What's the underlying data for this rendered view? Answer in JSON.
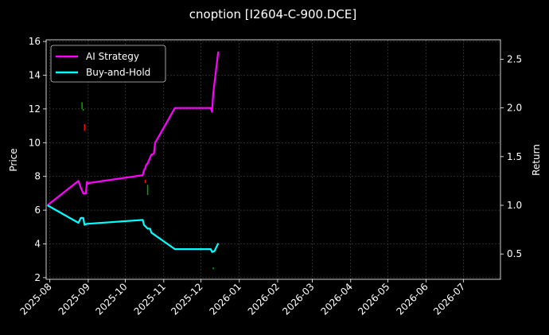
{
  "chart_data": {
    "type": "line",
    "title": "cnoption [I2604-C-900.DCE]",
    "ylabel_left": "Price",
    "ylabel_right": "Return",
    "x_range": [
      "2025-07-29",
      "2026-07-31"
    ],
    "y_left_range": [
      1.9,
      16.1
    ],
    "y_right_range": [
      0.24,
      2.7
    ],
    "x_tick_labels": [
      "2025-08",
      "2025-09",
      "2025-10",
      "2025-11",
      "2025-12",
      "2026-01",
      "2026-02",
      "2026-03",
      "2026-04",
      "2026-05",
      "2026-06",
      "2026-07"
    ],
    "x_tick_dates": [
      "2025-08-01",
      "2025-09-01",
      "2025-10-01",
      "2025-11-01",
      "2025-12-01",
      "2026-01-01",
      "2026-02-01",
      "2026-03-01",
      "2026-04-01",
      "2026-05-01",
      "2026-06-01",
      "2026-07-01"
    ],
    "y_left_ticks": [
      2,
      4,
      6,
      8,
      10,
      12,
      14,
      16
    ],
    "y_right_ticks": [
      0.5,
      1.0,
      1.5,
      2.0,
      2.5
    ],
    "y_right_tick_labels": [
      "0.5",
      "1.0",
      "1.5",
      "2.0",
      "2.5"
    ],
    "grid": true,
    "legend_position": "top-left",
    "colors": {
      "background": "#000000",
      "ai_strategy": "#ff00ff",
      "buy_and_hold": "#00ffff",
      "candle_up": "#ff0000",
      "candle_down": "#00aa00",
      "grid": "#555555"
    },
    "series": [
      {
        "name": "AI Strategy",
        "axis": "right",
        "color": "#ff00ff",
        "points": [
          [
            "2025-07-30",
            1.0
          ],
          [
            "2025-08-24",
            1.25
          ],
          [
            "2025-08-26",
            1.18
          ],
          [
            "2025-08-28",
            1.12
          ],
          [
            "2025-08-30",
            1.12
          ],
          [
            "2025-08-31",
            1.24
          ],
          [
            "2025-09-01",
            1.22
          ],
          [
            "2025-09-02",
            1.23
          ],
          [
            "2025-10-15",
            1.31
          ],
          [
            "2025-10-16",
            1.36
          ],
          [
            "2025-10-17",
            1.38
          ],
          [
            "2025-10-18",
            1.42
          ],
          [
            "2025-10-19",
            1.43
          ],
          [
            "2025-10-20",
            1.46
          ],
          [
            "2025-10-22",
            1.52
          ],
          [
            "2025-10-24",
            1.53
          ],
          [
            "2025-10-25",
            1.64
          ],
          [
            "2025-11-10",
            2.0
          ],
          [
            "2025-12-09",
            2.0
          ],
          [
            "2025-12-10",
            1.96
          ],
          [
            "2025-12-11",
            2.15
          ],
          [
            "2025-12-15",
            2.58
          ]
        ]
      },
      {
        "name": "Buy-and-Hold",
        "axis": "right",
        "color": "#00ffff",
        "points": [
          [
            "2025-07-30",
            1.0
          ],
          [
            "2025-08-24",
            0.82
          ],
          [
            "2025-08-26",
            0.87
          ],
          [
            "2025-08-28",
            0.87
          ],
          [
            "2025-08-29",
            0.8
          ],
          [
            "2025-08-31",
            0.81
          ],
          [
            "2025-10-15",
            0.85
          ],
          [
            "2025-10-16",
            0.8
          ],
          [
            "2025-10-19",
            0.76
          ],
          [
            "2025-10-21",
            0.76
          ],
          [
            "2025-10-22",
            0.72
          ],
          [
            "2025-11-10",
            0.55
          ],
          [
            "2025-12-09",
            0.55
          ],
          [
            "2025-12-10",
            0.52
          ],
          [
            "2025-12-12",
            0.53
          ],
          [
            "2025-12-15",
            0.61
          ]
        ]
      }
    ],
    "candles": [
      {
        "date": "2025-08-27",
        "low": 12.0,
        "high": 12.4,
        "direction": "down"
      },
      {
        "date": "2025-08-28",
        "low": 11.9,
        "high": 12.0,
        "direction": "down"
      },
      {
        "date": "2025-08-29",
        "low": 10.7,
        "high": 11.1,
        "direction": "up"
      },
      {
        "date": "2025-10-17",
        "low": 7.6,
        "high": 7.8,
        "direction": "up"
      },
      {
        "date": "2025-10-19",
        "low": 6.9,
        "high": 7.5,
        "direction": "down"
      },
      {
        "date": "2025-12-11",
        "low": 2.5,
        "high": 2.6,
        "direction": "down"
      }
    ]
  }
}
